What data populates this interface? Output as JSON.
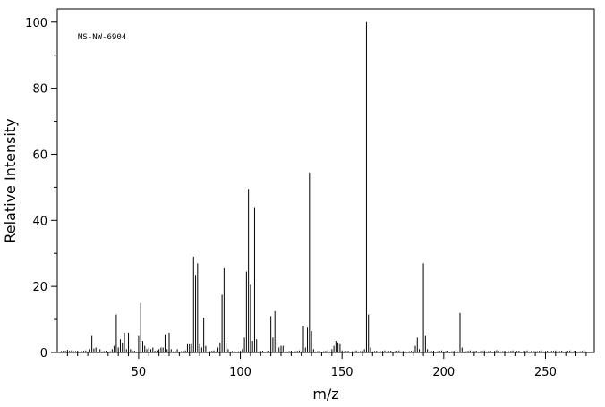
{
  "chart_data": {
    "type": "bar",
    "annotation": "MS-NW-6904",
    "xlabel": "m/z",
    "ylabel": "Relative Intensity",
    "xlim": [
      10,
      274
    ],
    "ylim": [
      0,
      104
    ],
    "xticks": [
      50,
      100,
      150,
      200,
      250
    ],
    "yticks": [
      0,
      20,
      40,
      60,
      80,
      100
    ],
    "grid": false,
    "peaks": [
      [
        14,
        0.5
      ],
      [
        15,
        0.8
      ],
      [
        18,
        0.4
      ],
      [
        26,
        1.0
      ],
      [
        27,
        5.0
      ],
      [
        28,
        1.2
      ],
      [
        29,
        1.5
      ],
      [
        31,
        1.0
      ],
      [
        37,
        1.0
      ],
      [
        38,
        2.0
      ],
      [
        39,
        11.5
      ],
      [
        40,
        1.5
      ],
      [
        41,
        4.0
      ],
      [
        42,
        3.0
      ],
      [
        43,
        6.0
      ],
      [
        44,
        1.0
      ],
      [
        45,
        6.0
      ],
      [
        46,
        1.0
      ],
      [
        50,
        5.0
      ],
      [
        51,
        15.0
      ],
      [
        52,
        3.5
      ],
      [
        53,
        2.0
      ],
      [
        54,
        1.0
      ],
      [
        55,
        1.5
      ],
      [
        56,
        1.0
      ],
      [
        57,
        1.5
      ],
      [
        60,
        1.0
      ],
      [
        61,
        1.5
      ],
      [
        62,
        1.5
      ],
      [
        63,
        5.5
      ],
      [
        64,
        1.0
      ],
      [
        65,
        6.0
      ],
      [
        66,
        1.0
      ],
      [
        69,
        1.0
      ],
      [
        74,
        2.5
      ],
      [
        75,
        2.5
      ],
      [
        76,
        2.5
      ],
      [
        77,
        29.0
      ],
      [
        78,
        23.5
      ],
      [
        79,
        27.0
      ],
      [
        80,
        2.5
      ],
      [
        81,
        1.5
      ],
      [
        82,
        10.5
      ],
      [
        83,
        2.0
      ],
      [
        89,
        1.5
      ],
      [
        90,
        3.0
      ],
      [
        91,
        17.5
      ],
      [
        92,
        25.5
      ],
      [
        93,
        3.0
      ],
      [
        94,
        1.0
      ],
      [
        101,
        1.0
      ],
      [
        102,
        4.5
      ],
      [
        103,
        24.5
      ],
      [
        104,
        49.5
      ],
      [
        105,
        20.5
      ],
      [
        106,
        3.5
      ],
      [
        107,
        44.0
      ],
      [
        108,
        4.0
      ],
      [
        115,
        11.0
      ],
      [
        116,
        4.5
      ],
      [
        117,
        12.5
      ],
      [
        118,
        4.0
      ],
      [
        119,
        1.5
      ],
      [
        120,
        2.0
      ],
      [
        121,
        2.0
      ],
      [
        131,
        8.0
      ],
      [
        132,
        1.5
      ],
      [
        133,
        7.5
      ],
      [
        134,
        54.5
      ],
      [
        135,
        6.5
      ],
      [
        136,
        1.0
      ],
      [
        145,
        1.0
      ],
      [
        146,
        2.0
      ],
      [
        147,
        3.5
      ],
      [
        148,
        3.0
      ],
      [
        149,
        2.5
      ],
      [
        161,
        1.0
      ],
      [
        162,
        100.0
      ],
      [
        163,
        11.5
      ],
      [
        164,
        1.5
      ],
      [
        186,
        2.0
      ],
      [
        187,
        4.5
      ],
      [
        188,
        1.0
      ],
      [
        190,
        27.0
      ],
      [
        191,
        5.0
      ],
      [
        192,
        1.0
      ],
      [
        208,
        12.0
      ],
      [
        209,
        1.5
      ],
      [
        210,
        0.5
      ],
      [
        225,
        0.5
      ],
      [
        226,
        0.7
      ],
      [
        227,
        0.5
      ],
      [
        236,
        0.5
      ],
      [
        245,
        0.4
      ],
      [
        253,
        0.5
      ]
    ]
  }
}
